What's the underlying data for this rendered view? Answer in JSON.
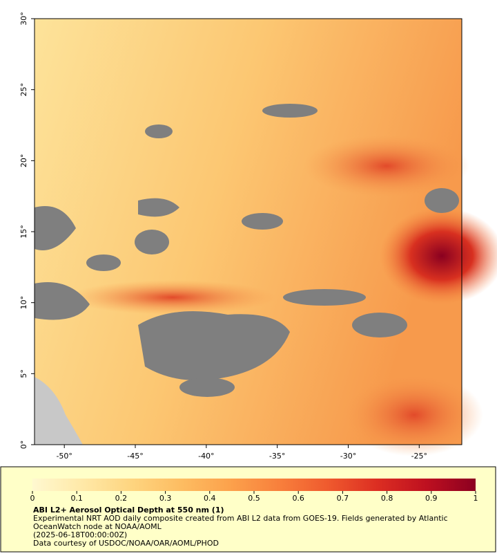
{
  "chart_data": {
    "type": "map",
    "xlim": [
      -52.1,
      -22
    ],
    "ylim": [
      0,
      30
    ],
    "xticks": [
      {
        "value": -50,
        "label": "-50°"
      },
      {
        "value": -45,
        "label": "-45°"
      },
      {
        "value": -40,
        "label": "-40°"
      },
      {
        "value": -35,
        "label": "-35°"
      },
      {
        "value": -30,
        "label": "-30°"
      },
      {
        "value": -25,
        "label": "-25°"
      }
    ],
    "yticks": [
      {
        "value": 0,
        "label": "0°"
      },
      {
        "value": 5,
        "label": "5°"
      },
      {
        "value": 10,
        "label": "10°"
      },
      {
        "value": 15,
        "label": "15°"
      },
      {
        "value": 20,
        "label": "20°"
      },
      {
        "value": 25,
        "label": "25°"
      },
      {
        "value": 30,
        "label": "30°"
      }
    ],
    "colorbar": {
      "lim": [
        0,
        1
      ],
      "ticks": [
        0,
        0.1,
        0.2,
        0.3,
        0.4,
        0.5,
        0.6,
        0.7,
        0.8,
        0.9,
        1
      ],
      "colors": [
        "#fff8d0",
        "#ffe9a8",
        "#fed580",
        "#fdbd62",
        "#fca24c",
        "#f8803c",
        "#ef5a2e",
        "#dc2e22",
        "#be1020",
        "#8c0020"
      ]
    },
    "title": "ABI L2+ Aerosol Optical Depth at 550 nm (1)",
    "notes": [
      "Experimental NRT AOD daily composite created from ABI L2 data from GOES-19. Fields generated by Atlantic",
      "OceanWatch node at NOAA/AOML",
      "(2025-06-18T00:00:00Z)",
      "Data courtesy of USDOC/NOAA/OAR/AOML/PHOD"
    ]
  }
}
